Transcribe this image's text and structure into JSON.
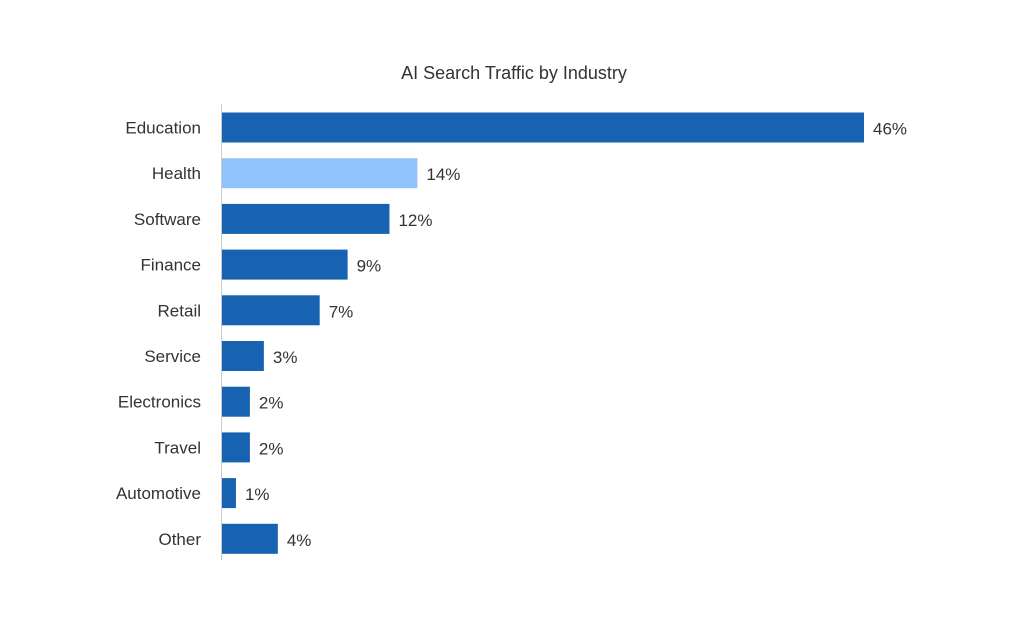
{
  "chart_data": {
    "type": "bar",
    "orientation": "horizontal",
    "title": "AI Search Traffic by Industry",
    "categories": [
      "Education",
      "Health",
      "Software",
      "Finance",
      "Retail",
      "Service",
      "Electronics",
      "Travel",
      "Automotive",
      "Other"
    ],
    "values": [
      46,
      14,
      12,
      9,
      7,
      3,
      2,
      2,
      1,
      4
    ],
    "value_labels": [
      "46%",
      "14%",
      "12%",
      "9%",
      "7%",
      "3%",
      "2%",
      "2%",
      "1%",
      "4%"
    ],
    "unit": "%",
    "xlim": [
      0,
      46
    ],
    "highlight_category": "Health",
    "colors": {
      "default": "#1763B1",
      "highlight": "#92C2FA",
      "axis": "#CCCCCC"
    },
    "grid": false,
    "legend": "none",
    "xlabel": "",
    "ylabel": ""
  }
}
